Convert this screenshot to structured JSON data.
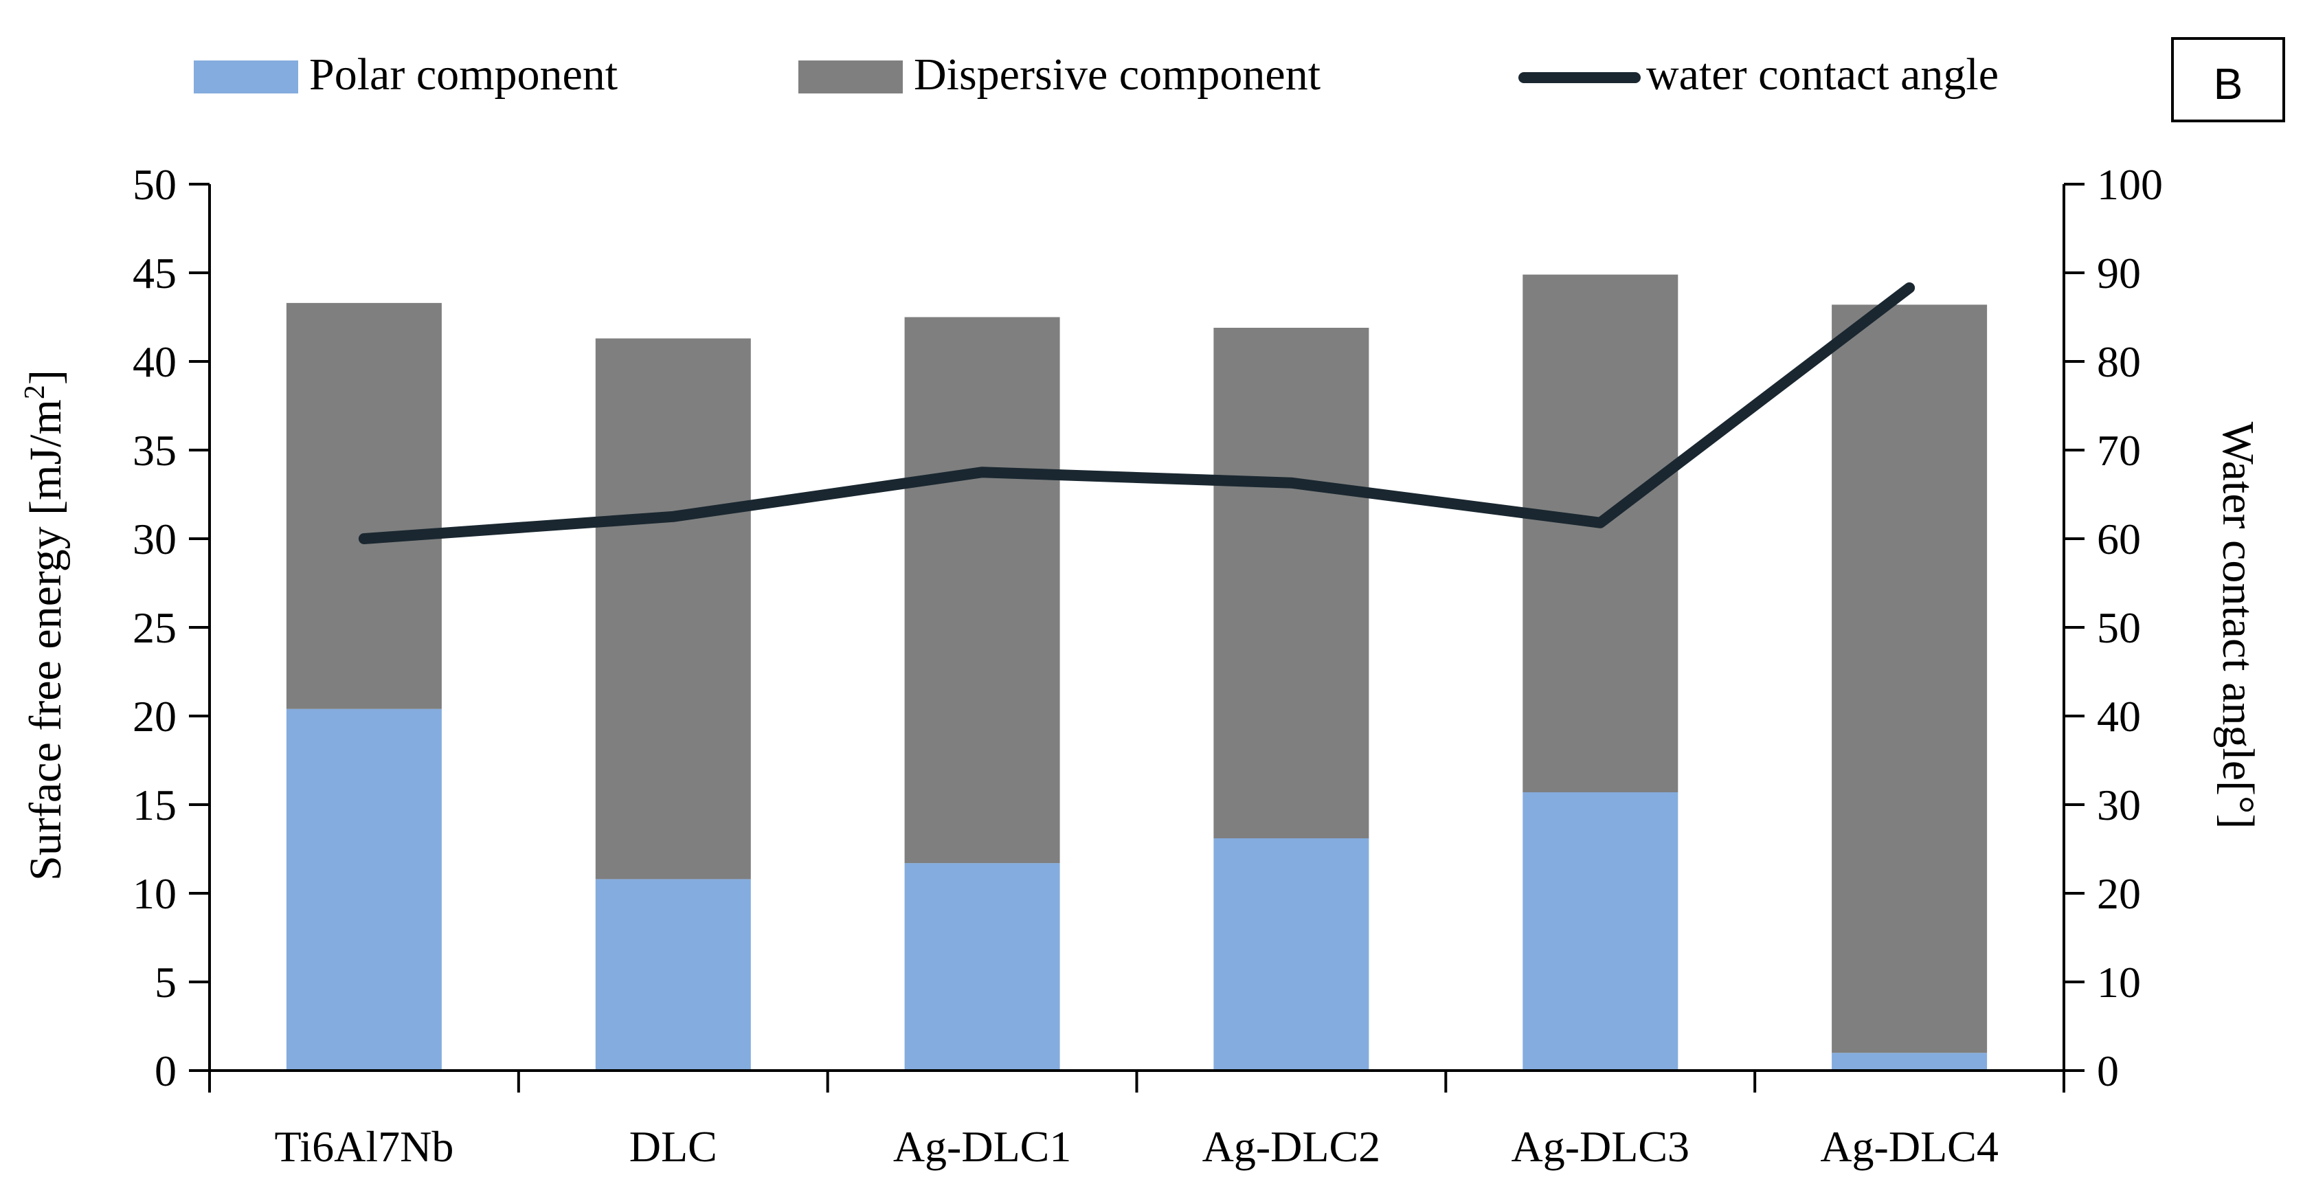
{
  "chart_data": {
    "type": "bar",
    "stacked": true,
    "panel_label": "B",
    "categories": [
      "Ti6Al7Nb",
      "DLC",
      "Ag-DLC1",
      "Ag-DLC2",
      "Ag-DLC3",
      "Ag-DLC4"
    ],
    "series": [
      {
        "name": "Polar component",
        "axis": "left",
        "kind": "bar",
        "color": "#84ACDE",
        "values": [
          20.4,
          10.8,
          11.7,
          13.1,
          15.7,
          1.0
        ]
      },
      {
        "name": "Dispersive component",
        "axis": "left",
        "kind": "bar",
        "color": "#7F7F7F",
        "values": [
          22.9,
          30.5,
          30.8,
          28.8,
          29.2,
          42.2
        ]
      },
      {
        "name": "water contact angle",
        "axis": "right",
        "kind": "line",
        "color": "#1A2730",
        "values": [
          60.0,
          62.5,
          67.5,
          66.3,
          61.8,
          88.3
        ]
      }
    ],
    "ylabel": "Surface free energy [mJ/m",
    "ylabel_sup": "2",
    "ylabel_end": "]",
    "y2label": "Water contact angle[°]",
    "ylim": [
      0,
      50
    ],
    "y2lim": [
      0,
      100
    ],
    "yticks": [
      "0",
      "5",
      "10",
      "15",
      "20",
      "25",
      "30",
      "35",
      "40",
      "45",
      "50"
    ],
    "y2ticks": [
      "0",
      "10",
      "20",
      "30",
      "40",
      "50",
      "60",
      "70",
      "80",
      "90",
      "100"
    ],
    "legend_position": "top",
    "grid": false
  }
}
